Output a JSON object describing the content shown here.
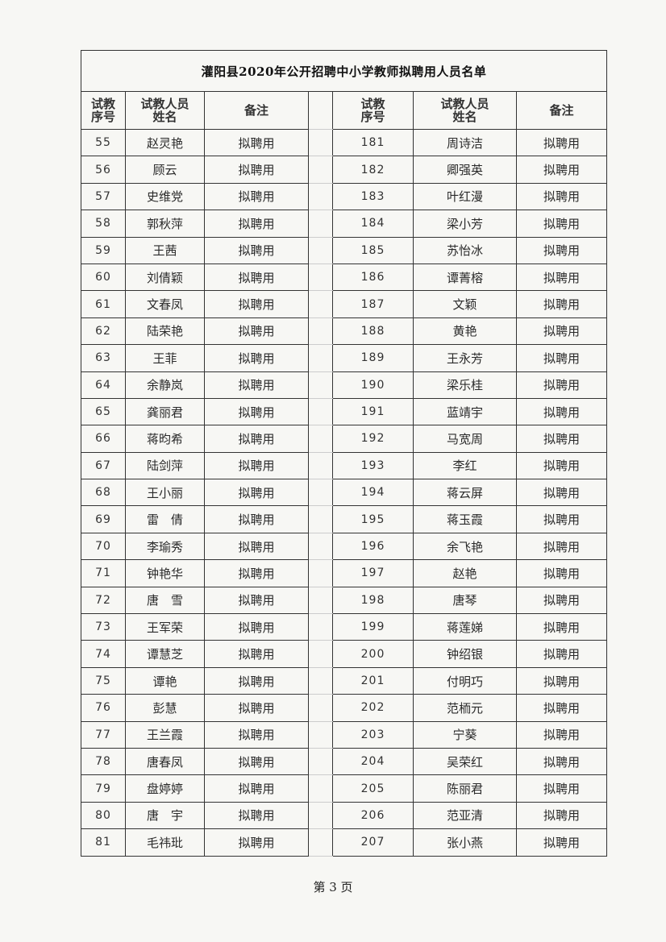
{
  "title": "灌阳县2020年公开招聘中小学教师拟聘用人员名单",
  "headers": {
    "seq": "试教\n序号",
    "name": "试教人员\n姓名",
    "note": "备注"
  },
  "left_rows": [
    {
      "seq": "55",
      "name": "赵灵艳",
      "note": "拟聘用"
    },
    {
      "seq": "56",
      "name": "顾云",
      "note": "拟聘用"
    },
    {
      "seq": "57",
      "name": "史维党",
      "note": "拟聘用"
    },
    {
      "seq": "58",
      "name": "郭秋萍",
      "note": "拟聘用"
    },
    {
      "seq": "59",
      "name": "王茜",
      "note": "拟聘用"
    },
    {
      "seq": "60",
      "name": "刘倩颖",
      "note": "拟聘用"
    },
    {
      "seq": "61",
      "name": "文春凤",
      "note": "拟聘用"
    },
    {
      "seq": "62",
      "name": "陆荣艳",
      "note": "拟聘用"
    },
    {
      "seq": "63",
      "name": "王菲",
      "note": "拟聘用"
    },
    {
      "seq": "64",
      "name": "余静岚",
      "note": "拟聘用"
    },
    {
      "seq": "65",
      "name": "龚丽君",
      "note": "拟聘用"
    },
    {
      "seq": "66",
      "name": "蒋昀希",
      "note": "拟聘用"
    },
    {
      "seq": "67",
      "name": "陆剑萍",
      "note": "拟聘用"
    },
    {
      "seq": "68",
      "name": "王小丽",
      "note": "拟聘用"
    },
    {
      "seq": "69",
      "name": "雷　倩",
      "note": "拟聘用"
    },
    {
      "seq": "70",
      "name": "李瑜秀",
      "note": "拟聘用"
    },
    {
      "seq": "71",
      "name": "钟艳华",
      "note": "拟聘用"
    },
    {
      "seq": "72",
      "name": "唐　雪",
      "note": "拟聘用"
    },
    {
      "seq": "73",
      "name": "王军荣",
      "note": "拟聘用"
    },
    {
      "seq": "74",
      "name": "谭慧芝",
      "note": "拟聘用"
    },
    {
      "seq": "75",
      "name": "谭艳",
      "note": "拟聘用"
    },
    {
      "seq": "76",
      "name": "彭慧",
      "note": "拟聘用"
    },
    {
      "seq": "77",
      "name": "王兰霞",
      "note": "拟聘用"
    },
    {
      "seq": "78",
      "name": "唐春凤",
      "note": "拟聘用"
    },
    {
      "seq": "79",
      "name": "盘婷婷",
      "note": "拟聘用"
    },
    {
      "seq": "80",
      "name": "唐　宇",
      "note": "拟聘用"
    },
    {
      "seq": "81",
      "name": "毛祎玭",
      "note": "拟聘用"
    }
  ],
  "right_rows": [
    {
      "seq": "181",
      "name": "周诗洁",
      "note": "拟聘用"
    },
    {
      "seq": "182",
      "name": "卿强英",
      "note": "拟聘用"
    },
    {
      "seq": "183",
      "name": "叶红漫",
      "note": "拟聘用"
    },
    {
      "seq": "184",
      "name": "梁小芳",
      "note": "拟聘用"
    },
    {
      "seq": "185",
      "name": "苏怡冰",
      "note": "拟聘用"
    },
    {
      "seq": "186",
      "name": "谭菁榕",
      "note": "拟聘用"
    },
    {
      "seq": "187",
      "name": "文颖",
      "note": "拟聘用"
    },
    {
      "seq": "188",
      "name": "黄艳",
      "note": "拟聘用"
    },
    {
      "seq": "189",
      "name": "王永芳",
      "note": "拟聘用"
    },
    {
      "seq": "190",
      "name": "梁乐桂",
      "note": "拟聘用"
    },
    {
      "seq": "191",
      "name": "蓝靖宇",
      "note": "拟聘用"
    },
    {
      "seq": "192",
      "name": "马宽周",
      "note": "拟聘用"
    },
    {
      "seq": "193",
      "name": "李红",
      "note": "拟聘用"
    },
    {
      "seq": "194",
      "name": "蒋云屏",
      "note": "拟聘用"
    },
    {
      "seq": "195",
      "name": "蒋玉霞",
      "note": "拟聘用"
    },
    {
      "seq": "196",
      "name": "余飞艳",
      "note": "拟聘用"
    },
    {
      "seq": "197",
      "name": "赵艳",
      "note": "拟聘用"
    },
    {
      "seq": "198",
      "name": "唐琴",
      "note": "拟聘用"
    },
    {
      "seq": "199",
      "name": "蒋莲娣",
      "note": "拟聘用"
    },
    {
      "seq": "200",
      "name": "钟绍银",
      "note": "拟聘用"
    },
    {
      "seq": "201",
      "name": "付明巧",
      "note": "拟聘用"
    },
    {
      "seq": "202",
      "name": "范栭元",
      "note": "拟聘用"
    },
    {
      "seq": "203",
      "name": "宁葵",
      "note": "拟聘用"
    },
    {
      "seq": "204",
      "name": "吴荣红",
      "note": "拟聘用"
    },
    {
      "seq": "205",
      "name": "陈丽君",
      "note": "拟聘用"
    },
    {
      "seq": "206",
      "name": "范亚清",
      "note": "拟聘用"
    },
    {
      "seq": "207",
      "name": "张小燕",
      "note": "拟聘用"
    }
  ],
  "footer": "第 3 页"
}
